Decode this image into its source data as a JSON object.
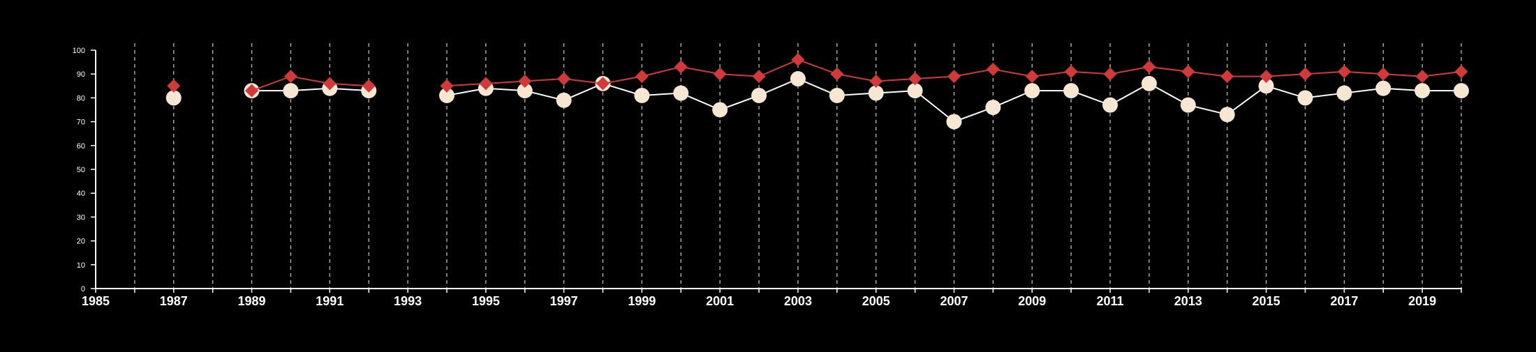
{
  "chart_data": {
    "type": "line",
    "title": "",
    "xlabel": "",
    "ylabel": "",
    "xlim": [
      1985,
      2020
    ],
    "ylim": [
      0,
      100
    ],
    "x_ticks": [
      1985,
      1987,
      1989,
      1991,
      1993,
      1995,
      1997,
      1999,
      2001,
      2003,
      2005,
      2007,
      2009,
      2011,
      2013,
      2015,
      2017,
      2019
    ],
    "y_ticks": [
      0,
      10,
      20,
      30,
      40,
      50,
      60,
      70,
      80,
      90,
      100
    ],
    "grid": "vertical dashed lines at every year",
    "background": "#000000",
    "axis_color": "#ffffff",
    "series": [
      {
        "color": "#d13a3a",
        "marker": "diamond",
        "x": [
          1987,
          1989,
          1990,
          1991,
          1992,
          1994,
          1995,
          1996,
          1997,
          1998,
          1999,
          2000,
          2001,
          2002,
          2003,
          2004,
          2005,
          2006,
          2007,
          2008,
          2009,
          2010,
          2011,
          2012,
          2013,
          2014,
          2015,
          2016,
          2017,
          2018,
          2019,
          2020
        ],
        "values": [
          85,
          83,
          89,
          86,
          85,
          85,
          86,
          87,
          88,
          86,
          89,
          93,
          90,
          89,
          96,
          90,
          87,
          88,
          89,
          92,
          89,
          91,
          90,
          93,
          91,
          89,
          89,
          90,
          91,
          90,
          89,
          91
        ]
      },
      {
        "color": "#f6e6d2",
        "line_color": "#ffffff",
        "marker": "circle",
        "x": [
          1987,
          1989,
          1990,
          1991,
          1992,
          1994,
          1995,
          1996,
          1997,
          1998,
          1999,
          2000,
          2001,
          2002,
          2003,
          2004,
          2005,
          2006,
          2007,
          2008,
          2009,
          2010,
          2011,
          2012,
          2013,
          2014,
          2015,
          2016,
          2017,
          2018,
          2019,
          2020
        ],
        "values": [
          80,
          83,
          83,
          84,
          83,
          81,
          84,
          83,
          79,
          86,
          81,
          82,
          75,
          81,
          88,
          81,
          82,
          83,
          70,
          76,
          83,
          83,
          77,
          86,
          77,
          73,
          85,
          80,
          82,
          84,
          83,
          83
        ]
      }
    ]
  }
}
